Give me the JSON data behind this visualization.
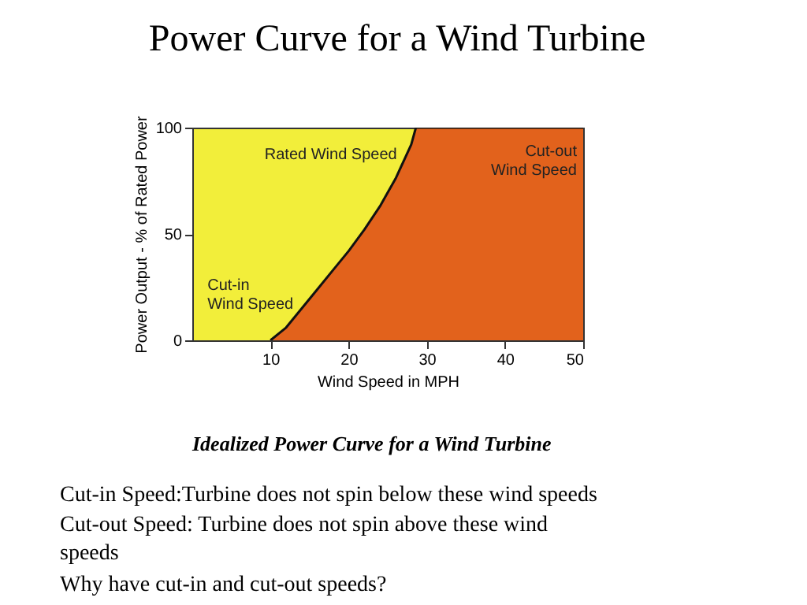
{
  "chart_data": {
    "type": "area",
    "title": "Power Curve for a Wind Turbine",
    "xlabel": "Wind Speed in MPH",
    "ylabel": "Power Output - % of Rated Power",
    "series": [
      {
        "color": "#e2621c",
        "x": [
          10,
          12,
          14,
          16,
          18,
          20,
          22,
          24,
          26,
          28,
          28.6,
          50
        ],
        "values": [
          0,
          6,
          15,
          24,
          33,
          42,
          52,
          63,
          76,
          92,
          100,
          100
        ]
      }
    ],
    "xlim": [
      0,
      50
    ],
    "xticks": [
      10,
      20,
      30,
      40,
      50
    ],
    "ylim": [
      0,
      100
    ],
    "yticks": [
      0,
      50,
      100
    ],
    "grid": false,
    "annotations": [
      {
        "text": "Rated Wind Speed",
        "x": 28.6,
        "y": 100
      },
      {
        "text": "Cut-out\nWind Speed",
        "x": 50,
        "y": 100
      },
      {
        "text": "Cut-in\nWind Speed",
        "x": 10,
        "y": 0
      },
      "Idealized Power Curve for a Wind Turbine",
      "Cut-in Speed:Turbine does not spin below these wind speeds",
      "Cut-out Speed: Turbine does not spin above these wind\nspeeds",
      "Why have cut-in and cut-out speeds?"
    ]
  }
}
